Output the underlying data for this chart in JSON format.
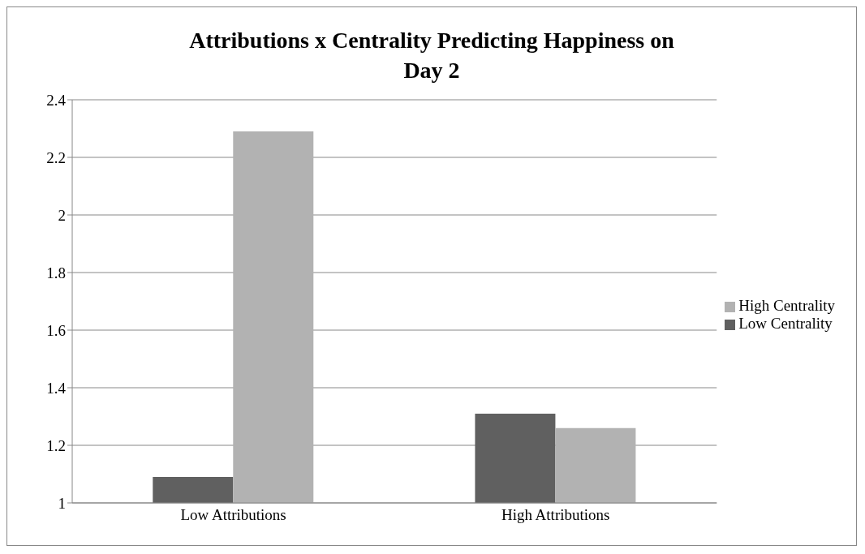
{
  "chart_data": {
    "type": "bar",
    "title": "Attributions x Centrality Predicting Happiness on Day 2",
    "categories": [
      "Low Attributions",
      "High Attributions"
    ],
    "series": [
      {
        "name": "Low Centrality",
        "color": "#606060",
        "values": [
          1.09,
          1.31
        ]
      },
      {
        "name": "High Centrality",
        "color": "#b2b2b2",
        "values": [
          2.29,
          1.26
        ]
      }
    ],
    "ylim": [
      1,
      2.4
    ],
    "yticks": [
      1,
      1.2,
      1.4,
      1.6,
      1.8,
      2,
      2.2,
      2.4
    ],
    "grid": "y",
    "legend": "right"
  }
}
